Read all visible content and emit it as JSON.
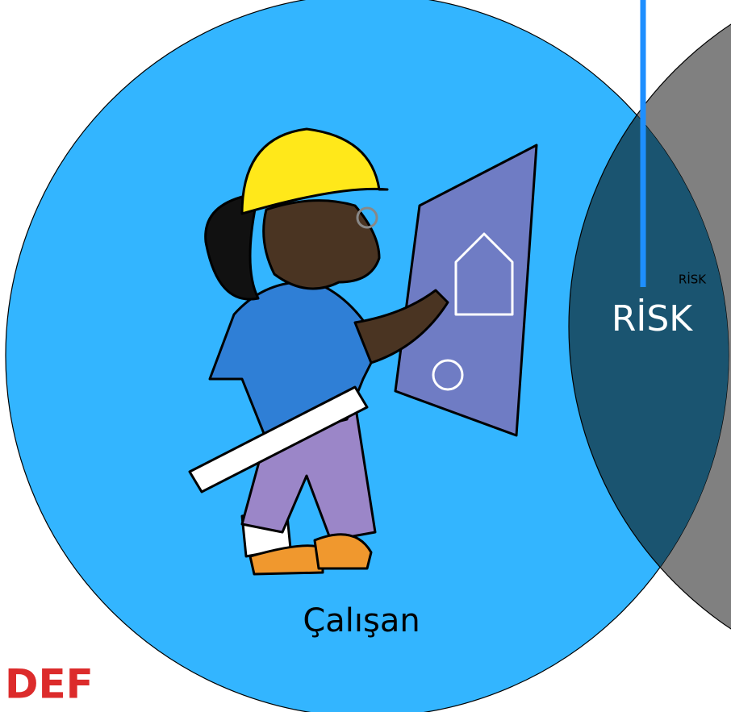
{
  "labels": {
    "risk_small": "RİSK",
    "risk_large": "RİSK",
    "worker": "Çalışan",
    "corner": "DEF"
  }
}
